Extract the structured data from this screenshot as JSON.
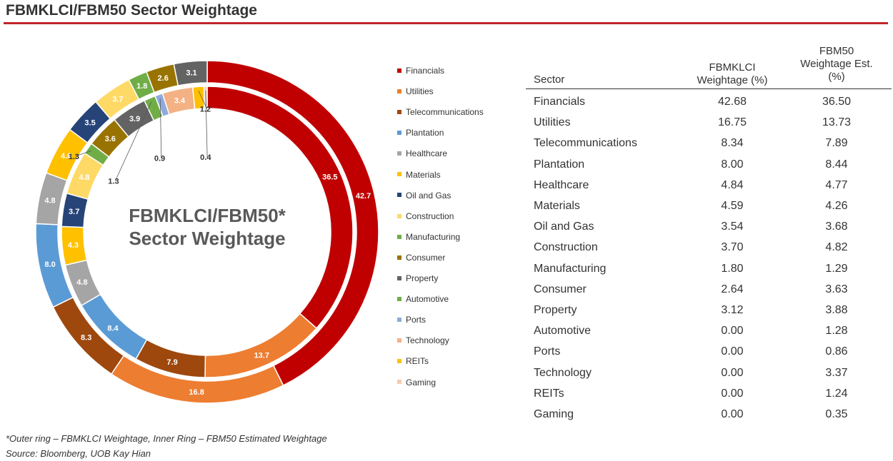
{
  "header": {
    "title": "FBMKLCI/FBM50 Sector Weightage"
  },
  "chart_data": {
    "type": "pie",
    "title": "FBMKLCI/FBM50* Sector Weightage",
    "title_lines": [
      "FBMKLCI/FBM50*",
      "Sector Weightage"
    ],
    "categories": [
      "Financials",
      "Utilities",
      "Telecommunications",
      "Plantation",
      "Healthcare",
      "Materials",
      "Oil and Gas",
      "Construction",
      "Manufacturing",
      "Consumer",
      "Property",
      "Automotive",
      "Ports",
      "Technology",
      "REITs",
      "Gaming"
    ],
    "colors": [
      "#c00000",
      "#ed7d31",
      "#9e480e",
      "#5b9bd5",
      "#a5a5a5",
      "#ffc000",
      "#264478",
      "#ffd966",
      "#70ad47",
      "#997300",
      "#636363",
      "#70ad47",
      "#8faadc",
      "#f4b183",
      "#ffc000",
      "#f8cbad"
    ],
    "series": [
      {
        "ring": "outer",
        "values": [
          42.68,
          16.75,
          8.34,
          8.0,
          4.84,
          4.59,
          3.54,
          3.7,
          1.8,
          2.64,
          3.12,
          0.0,
          0.0,
          0.0,
          0.0,
          0.0
        ]
      },
      {
        "ring": "inner",
        "values": [
          36.5,
          13.73,
          7.89,
          8.44,
          4.77,
          4.26,
          3.68,
          4.82,
          1.29,
          3.63,
          3.88,
          1.28,
          0.86,
          3.37,
          1.24,
          0.35
        ]
      }
    ],
    "legend_position": "right"
  },
  "table": {
    "headers": {
      "sector": "Sector",
      "klci": [
        "FBMKLCI",
        "Weightage (%)"
      ],
      "fbm50": [
        "FBM50",
        "Weightage Est.",
        "(%)"
      ]
    },
    "rows": [
      [
        "Financials",
        "42.68",
        "36.50"
      ],
      [
        "Utilities",
        "16.75",
        "13.73"
      ],
      [
        "Telecommunications",
        "8.34",
        "7.89"
      ],
      [
        "Plantation",
        "8.00",
        "8.44"
      ],
      [
        "Healthcare",
        "4.84",
        "4.77"
      ],
      [
        "Materials",
        "4.59",
        "4.26"
      ],
      [
        "Oil and Gas",
        "3.54",
        "3.68"
      ],
      [
        "Construction",
        "3.70",
        "4.82"
      ],
      [
        "Manufacturing",
        "1.80",
        "1.29"
      ],
      [
        "Consumer",
        "2.64",
        "3.63"
      ],
      [
        "Property",
        "3.12",
        "3.88"
      ],
      [
        "Automotive",
        "0.00",
        "1.28"
      ],
      [
        "Ports",
        "0.00",
        "0.86"
      ],
      [
        "Technology",
        "0.00",
        "3.37"
      ],
      [
        "REITs",
        "0.00",
        "1.24"
      ],
      [
        "Gaming",
        "0.00",
        "0.35"
      ]
    ]
  },
  "footnotes": {
    "rings": "*Outer ring – FBMKLCI Weightage, Inner Ring – FBM50 Estimated Weightage",
    "source": "Source: Bloomberg, UOB Kay Hian"
  }
}
